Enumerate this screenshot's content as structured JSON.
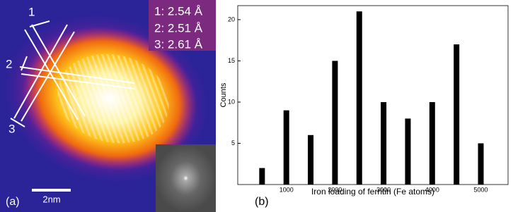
{
  "panel_a": {
    "label": "(a)",
    "scale_bar": "2nm",
    "fringe_labels": [
      "1",
      "2",
      "3"
    ],
    "spacings": [
      "1: 2.54 Å",
      "2: 2.51 Å",
      "3: 2.61 Å"
    ]
  },
  "chart_data": {
    "type": "bar",
    "panel_label": "(b)",
    "x_label": "Iron loading of ferritin (Fe atoms)",
    "y_label": "Counts",
    "x": [
      500,
      1000,
      1500,
      2000,
      2500,
      3000,
      3500,
      4000,
      4500,
      5000
    ],
    "values": [
      2,
      9,
      6,
      15,
      21,
      10,
      8,
      10,
      17,
      5
    ],
    "color": "#000000",
    "xlim": [
      0,
      5560
    ],
    "xticks": [
      1000,
      2000,
      3000,
      4000,
      5000
    ],
    "ylim": [
      0,
      21.7
    ],
    "yticks": [
      5,
      10,
      15,
      20
    ]
  }
}
